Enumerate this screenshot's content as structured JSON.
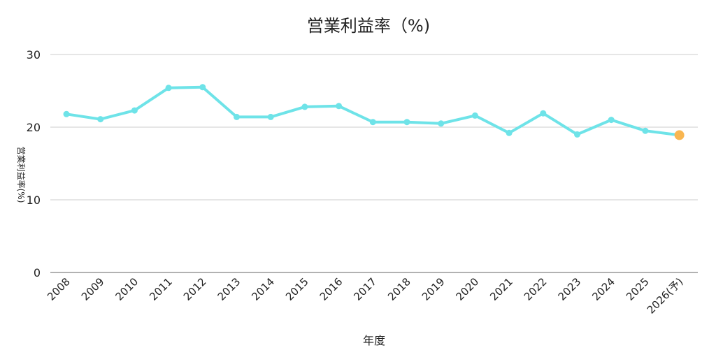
{
  "chart_data": {
    "type": "line",
    "title": "営業利益率（%)",
    "xlabel": "年度",
    "ylabel": "営業利益率(%)",
    "ylim": [
      0,
      30
    ],
    "yticks": [
      "0",
      "10",
      "20",
      "30"
    ],
    "grid": true,
    "legend": "none",
    "categories": [
      "2008",
      "2009",
      "2010",
      "2011",
      "2012",
      "2013",
      "2014",
      "2015",
      "2016",
      "2017",
      "2018",
      "2019",
      "2020",
      "2021",
      "2022",
      "2023",
      "2024",
      "2025",
      "2026(予)"
    ],
    "series": [
      {
        "values": [
          21.8,
          21.1,
          22.3,
          25.4,
          25.5,
          21.4,
          21.4,
          22.8,
          22.9,
          20.7,
          20.7,
          20.5,
          21.6,
          19.2,
          21.9,
          19.0,
          21.0,
          19.5,
          18.9
        ],
        "color": "#6ee3e8",
        "forecast_color": "#f9b650"
      }
    ]
  }
}
